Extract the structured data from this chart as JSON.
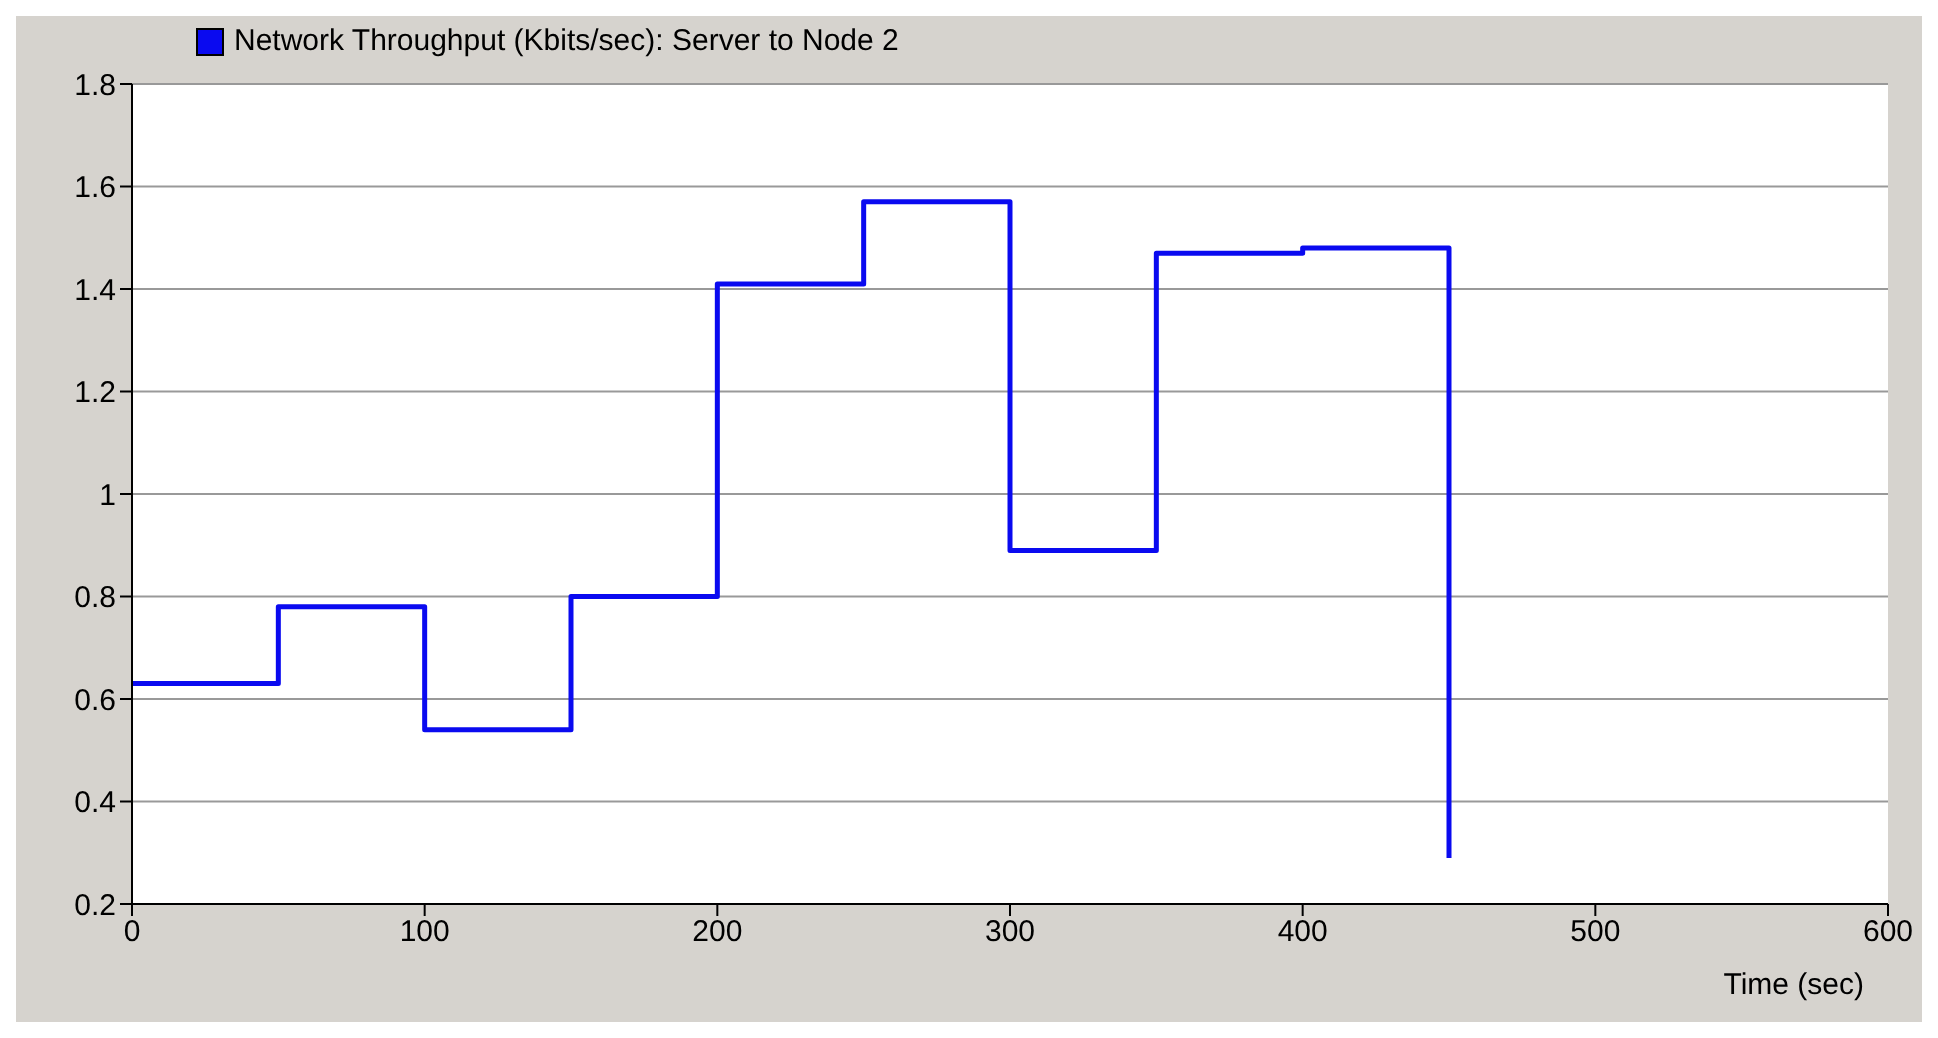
{
  "chart_data": {
    "type": "step",
    "xlabel": "Time (sec)",
    "x": [
      0,
      50,
      100,
      150,
      200,
      250,
      300,
      350,
      400,
      450
    ],
    "series": [
      {
        "name": "Network Throughput (Kbits/sec): Server to Node 2",
        "color": "#0a0af0",
        "values": [
          0.63,
          0.78,
          0.54,
          0.8,
          1.41,
          1.57,
          0.89,
          1.47,
          1.48,
          0.29
        ]
      }
    ],
    "xlim": [
      0,
      600
    ],
    "xticks": [
      0,
      100,
      200,
      300,
      400,
      500,
      600
    ],
    "ylim": [
      0.2,
      1.8
    ],
    "yticks": [
      0.2,
      0.4,
      0.6,
      0.8,
      1,
      1.2,
      1.4,
      1.6,
      1.8
    ],
    "grid": "y",
    "legend": "top left",
    "marker": "none",
    "line_style": "solid"
  }
}
